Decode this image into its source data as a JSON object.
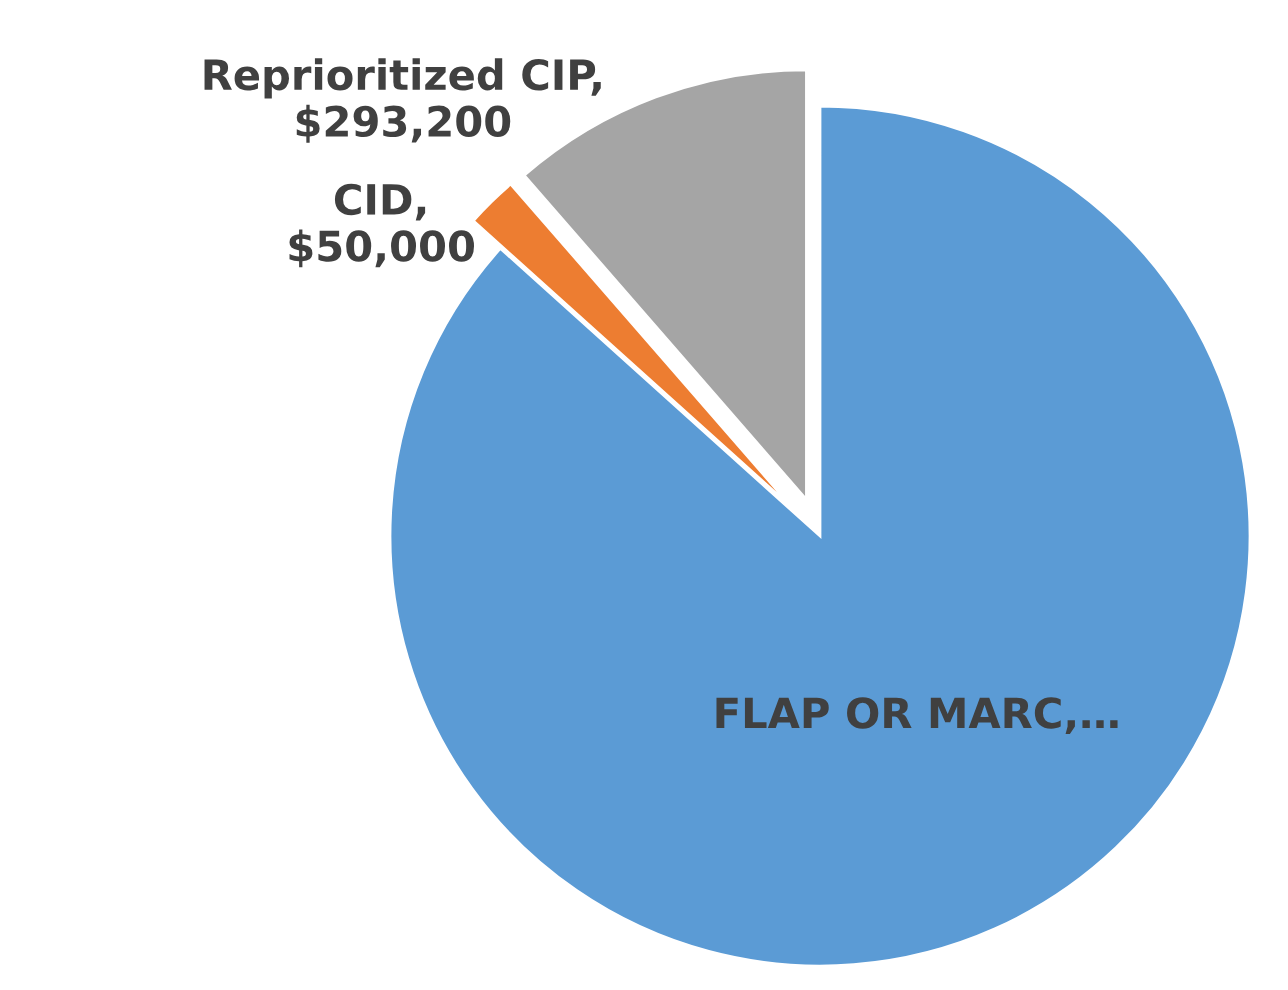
{
  "chart_data": {
    "type": "pie",
    "categories": [
      "FLAP OR MARC,…",
      "CID,\n$50,000",
      "Reprioritized CIP,\n$293,200"
    ],
    "values": [
      2230000,
      50000,
      293200
    ],
    "colors": [
      "#5b9bd5",
      "#ed7d31",
      "#a5a5a5"
    ]
  }
}
